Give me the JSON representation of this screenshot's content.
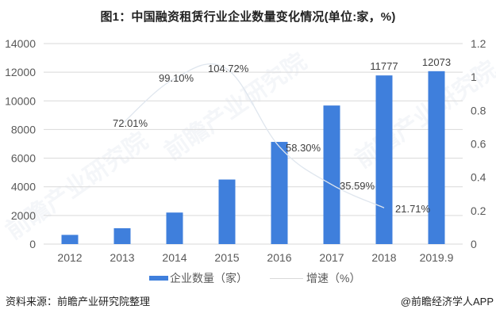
{
  "header": {
    "title": "图1：中国融资租赁行业企业数量变化情况(单位:家，%)"
  },
  "legend": {
    "bar_label": "企业数量（家）",
    "line_label": "增速（%）"
  },
  "footer": {
    "source": "资料来源：前瞻产业研究院整理",
    "credit": "@前瞻经济学人APP"
  },
  "watermarks": [
    "前瞻产业研究院",
    "前瞻产业研究院",
    "前瞻产业研究院"
  ],
  "colors": {
    "bar": "#3f7fdc",
    "line": "#dfe6ee",
    "grid": "#d9d9d9",
    "axis_text": "#595959"
  },
  "chart_data": {
    "type": "bar",
    "title": "图1：中国融资租赁行业企业数量变化情况(单位:家，%)",
    "categories": [
      "2012",
      "2013",
      "2014",
      "2015",
      "2016",
      "2017",
      "2018",
      "2019.9"
    ],
    "series": [
      {
        "name": "企业数量（家）",
        "type": "bar",
        "axis": "left",
        "values": [
          643,
          1106,
          2202,
          4508,
          7136,
          9676,
          11777,
          12073
        ],
        "data_labels": [
          "",
          "",
          "",
          "",
          "",
          "",
          "11777",
          "12073"
        ]
      },
      {
        "name": "增速（%）",
        "type": "line",
        "axis": "right",
        "values": [
          null,
          0.7201,
          0.991,
          1.0472,
          0.583,
          0.3559,
          0.2171,
          null
        ],
        "data_labels": [
          "",
          "72.01%",
          "99.10%",
          "104.72%",
          "58.30%",
          "35.59%",
          "21.71%",
          ""
        ]
      }
    ],
    "xlabel": "",
    "ylabel": "",
    "ylim": [
      0,
      14000
    ],
    "y_ticks": [
      "0",
      "2000",
      "4000",
      "6000",
      "8000",
      "10000",
      "12000",
      "14000"
    ],
    "y2lim": [
      0,
      1.2
    ],
    "y2_ticks": [
      "0",
      "0.2",
      "0.4",
      "0.6",
      "0.8",
      "1",
      "1.2"
    ],
    "grid": true,
    "legend_position": "bottom"
  }
}
